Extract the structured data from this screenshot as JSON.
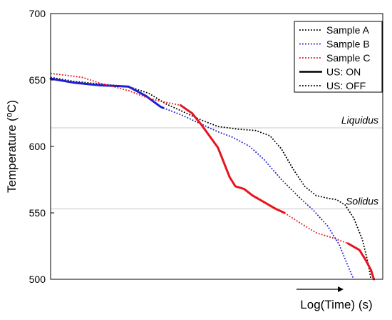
{
  "chart_data": {
    "type": "line",
    "title": "",
    "xlabel": "Log(Time) (s)",
    "ylabel": "Temperature (ºC)",
    "xlim": [
      0,
      100
    ],
    "ylim": [
      500,
      700
    ],
    "yticks": [
      500,
      550,
      600,
      650,
      700
    ],
    "grid": false,
    "legend_position": "top-right",
    "reference_lines": [
      {
        "label": "Liquidus",
        "y": 614,
        "color": "#c8c8c8"
      },
      {
        "label": "Solidus",
        "y": 553,
        "color": "#c8c8c8"
      }
    ],
    "legend": [
      {
        "label": "Sample A",
        "color": "#000000",
        "style": "dotted"
      },
      {
        "label": "Sample B",
        "color": "#1f1fd6",
        "style": "dotted"
      },
      {
        "label": "Sample C",
        "color": "#e8141e",
        "style": "dotted"
      },
      {
        "label": "US: ON",
        "color": "#000000",
        "style": "solid"
      },
      {
        "label": "US: OFF",
        "color": "#000000",
        "style": "dotted"
      }
    ],
    "series": [
      {
        "name": "Sample A",
        "color": "#000000",
        "segments": [
          {
            "style": "dotted",
            "points": [
              [
                0,
                652
              ],
              [
                8,
                649
              ],
              [
                17,
                647
              ],
              [
                27,
                645
              ],
              [
                34,
                640
              ],
              [
                40,
                632
              ],
              [
                46,
                626
              ],
              [
                52,
                620
              ],
              [
                58,
                615
              ],
              [
                65,
                613
              ],
              [
                71,
                612
              ],
              [
                76,
                608
              ],
              [
                80,
                598
              ],
              [
                84,
                583
              ],
              [
                88,
                570
              ],
              [
                92,
                563
              ],
              [
                96,
                561
              ],
              [
                99,
                560
              ],
              [
                102,
                556
              ],
              [
                105,
                546
              ],
              [
                108,
                530
              ],
              [
                110,
                512
              ],
              [
                111,
                500
              ]
            ]
          }
        ]
      },
      {
        "name": "Sample B",
        "color": "#1f1fd6",
        "segments": [
          {
            "style": "solid",
            "points": [
              [
                0,
                651
              ],
              [
                8,
                648
              ],
              [
                17,
                646
              ],
              [
                27,
                645
              ],
              [
                33,
                638
              ],
              [
                38,
                630
              ],
              [
                39,
                629
              ]
            ]
          },
          {
            "style": "dotted",
            "points": [
              [
                39,
                629
              ],
              [
                45,
                624
              ],
              [
                52,
                617
              ],
              [
                58,
                611
              ],
              [
                63,
                607
              ],
              [
                69,
                600
              ],
              [
                74,
                590
              ],
              [
                80,
                575
              ],
              [
                86,
                562
              ],
              [
                91,
                552
              ],
              [
                96,
                540
              ],
              [
                100,
                526
              ],
              [
                103,
                510
              ],
              [
                105,
                500
              ]
            ]
          }
        ]
      },
      {
        "name": "Sample C",
        "color": "#e8141e",
        "segments": [
          {
            "style": "dotted",
            "points": [
              [
                0,
                655
              ],
              [
                11,
                652
              ],
              [
                18,
                647
              ],
              [
                27,
                642
              ],
              [
                33,
                637
              ],
              [
                38,
                634
              ],
              [
                45,
                631
              ]
            ]
          },
          {
            "style": "solid",
            "points": [
              [
                45,
                631
              ],
              [
                49,
                625
              ],
              [
                52,
                617
              ],
              [
                55,
                608
              ],
              [
                58,
                599
              ],
              [
                60,
                588
              ],
              [
                62,
                577
              ],
              [
                64,
                570
              ],
              [
                67,
                568
              ],
              [
                70,
                563
              ],
              [
                74,
                558
              ],
              [
                78,
                553
              ],
              [
                81,
                550
              ]
            ]
          },
          {
            "style": "dotted",
            "points": [
              [
                81,
                550
              ],
              [
                86,
                543
              ],
              [
                92,
                535
              ],
              [
                98,
                531
              ],
              [
                103,
                527
              ]
            ]
          },
          {
            "style": "solid",
            "points": [
              [
                103,
                527
              ],
              [
                107,
                522
              ],
              [
                109,
                515
              ],
              [
                111,
                507
              ],
              [
                112,
                500
              ]
            ]
          }
        ]
      }
    ]
  }
}
